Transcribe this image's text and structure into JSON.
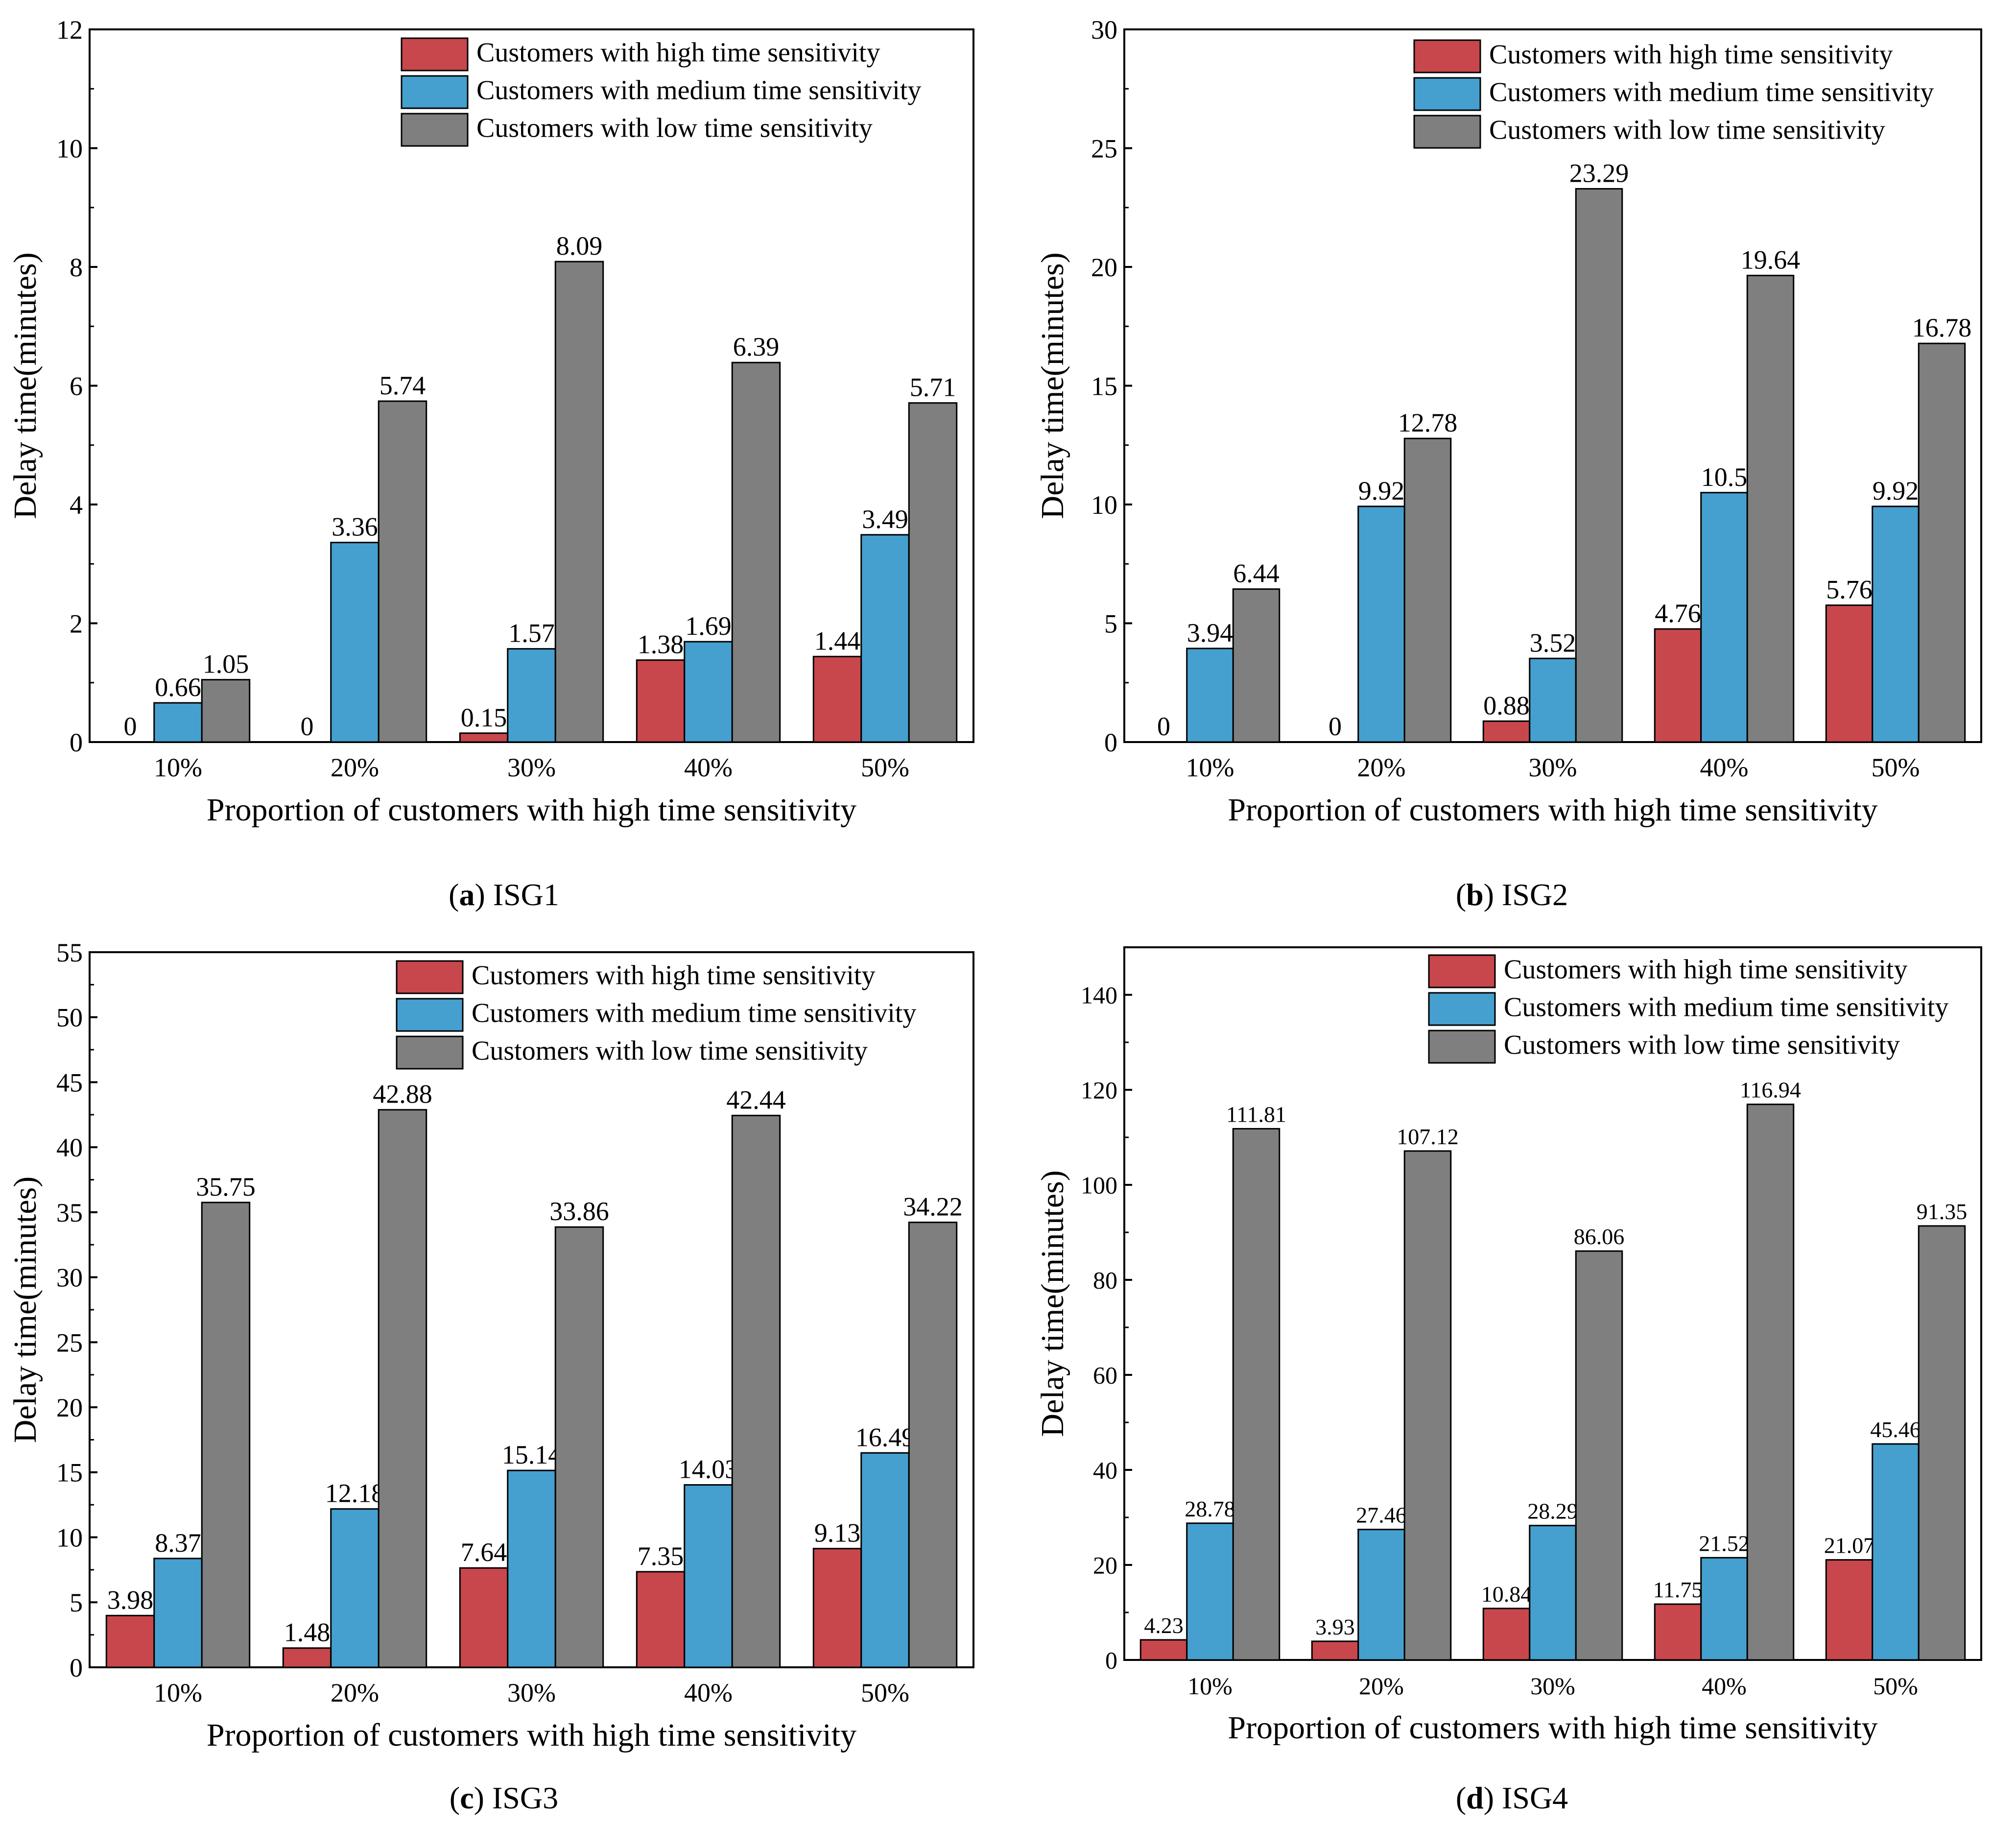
{
  "colors": {
    "high": "#c8474c",
    "medium": "#45a0cf",
    "low": "#7f7f7f"
  },
  "chart_data": [
    {
      "type": "bar",
      "panel_letter": "a",
      "panel_name": "ISG1",
      "xlabel": "Proportion of customers with high time sensitivity",
      "ylabel": "Delay time(minutes)",
      "categories": [
        "10%",
        "20%",
        "30%",
        "40%",
        "50%"
      ],
      "ylim": [
        0,
        12
      ],
      "yticks": [
        "0",
        "2",
        "4",
        "6",
        "8",
        "10",
        "12"
      ],
      "legend_position": "top-right",
      "series": [
        {
          "name": "Customers with high time sensitivity",
          "values": [
            0,
            0,
            0.15,
            1.38,
            1.44
          ],
          "labels": [
            "0",
            "0",
            "0.15",
            "1.38",
            "1.44"
          ]
        },
        {
          "name": "Customers with medium time sensitivity",
          "values": [
            0.66,
            3.36,
            1.57,
            1.69,
            3.49
          ],
          "labels": [
            "0.66",
            "3.36",
            "1.57",
            "1.69",
            "3.49"
          ]
        },
        {
          "name": "Customers with low time sensitivity",
          "values": [
            1.05,
            5.74,
            8.09,
            6.39,
            5.71
          ],
          "labels": [
            "1.05",
            "5.74",
            "8.09",
            "6.39",
            "5.71"
          ]
        }
      ]
    },
    {
      "type": "bar",
      "panel_letter": "b",
      "panel_name": "ISG2",
      "xlabel": "Proportion of customers with high time sensitivity",
      "ylabel": "Delay time(minutes)",
      "categories": [
        "10%",
        "20%",
        "30%",
        "40%",
        "50%"
      ],
      "ylim": [
        0,
        30
      ],
      "yticks": [
        "0",
        "5",
        "10",
        "15",
        "20",
        "25",
        "30"
      ],
      "legend_position": "top-right",
      "series": [
        {
          "name": "Customers with high time sensitivity",
          "values": [
            0,
            0,
            0.88,
            4.76,
            5.76
          ],
          "labels": [
            "0",
            "0",
            "0.88",
            "4.76",
            "5.76"
          ]
        },
        {
          "name": "Customers with medium time sensitivity",
          "values": [
            3.94,
            9.92,
            3.52,
            10.5,
            9.92
          ],
          "labels": [
            "3.94",
            "9.92",
            "3.52",
            "10.5",
            "9.92"
          ]
        },
        {
          "name": "Customers with low time sensitivity",
          "values": [
            6.44,
            12.78,
            23.29,
            19.64,
            16.78
          ],
          "labels": [
            "6.44",
            "12.78",
            "23.29",
            "19.64",
            "16.78"
          ]
        }
      ]
    },
    {
      "type": "bar",
      "panel_letter": "c",
      "panel_name": "ISG3",
      "xlabel": "Proportion of customers with high time sensitivity",
      "ylabel": "Delay time(minutes)",
      "categories": [
        "10%",
        "20%",
        "30%",
        "40%",
        "50%"
      ],
      "ylim": [
        0,
        55
      ],
      "yticks": [
        "0",
        "5",
        "10",
        "15",
        "20",
        "25",
        "30",
        "35",
        "40",
        "45",
        "50",
        "55"
      ],
      "legend_position": "top-right",
      "series": [
        {
          "name": "Customers with high time sensitivity",
          "values": [
            3.98,
            1.48,
            7.64,
            7.35,
            9.13
          ],
          "labels": [
            "3.98",
            "1.48",
            "7.64",
            "7.35",
            "9.13"
          ]
        },
        {
          "name": "Customers with medium time sensitivity",
          "values": [
            8.37,
            12.18,
            15.14,
            14.03,
            16.49
          ],
          "labels": [
            "8.37",
            "12.18",
            "15.14",
            "14.03",
            "16.49"
          ]
        },
        {
          "name": "Customers with low time sensitivity",
          "values": [
            35.75,
            42.88,
            33.86,
            42.44,
            34.22
          ],
          "labels": [
            "35.75",
            "42.88",
            "33.86",
            "42.44",
            "34.22"
          ]
        }
      ]
    },
    {
      "type": "bar",
      "panel_letter": "d",
      "panel_name": "ISG4",
      "xlabel": "Proportion of customers with high time sensitivity",
      "ylabel": "Delay time(minutes)",
      "categories": [
        "10%",
        "20%",
        "30%",
        "40%",
        "50%"
      ],
      "ylim": [
        0,
        150
      ],
      "yticks": [
        "0",
        "20",
        "40",
        "60",
        "80",
        "100",
        "120",
        "140"
      ],
      "legend_position": "top-right",
      "series": [
        {
          "name": "Customers with high time sensitivity",
          "values": [
            4.23,
            3.93,
            10.84,
            11.75,
            21.07
          ],
          "labels": [
            "4.23",
            "3.93",
            "10.84",
            "11.75",
            "21.07"
          ]
        },
        {
          "name": "Customers with medium time sensitivity",
          "values": [
            28.78,
            27.46,
            28.29,
            21.52,
            45.46
          ],
          "labels": [
            "28.78",
            "27.46",
            "28.29",
            "21.52",
            "45.46"
          ]
        },
        {
          "name": "Customers with low time sensitivity",
          "values": [
            111.81,
            107.12,
            86.06,
            116.94,
            91.35
          ],
          "labels": [
            "111.81",
            "107.12",
            "86.06",
            "116.94",
            "91.35"
          ]
        }
      ]
    }
  ]
}
